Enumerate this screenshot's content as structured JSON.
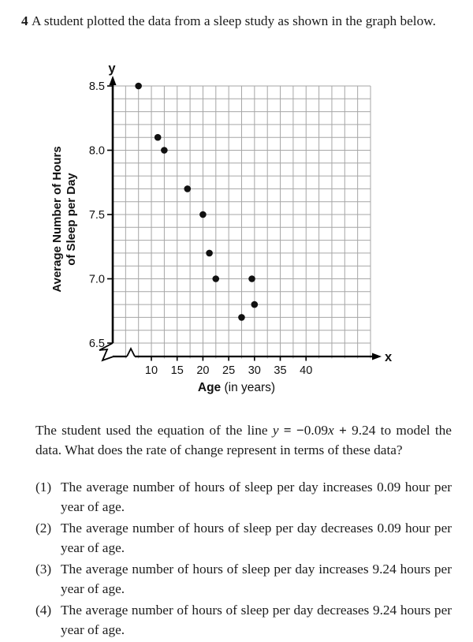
{
  "page": {
    "background": "#ffffff",
    "text_color": "#1c1c1c"
  },
  "question": {
    "number": "4",
    "stem": "A student plotted the data from a sleep study as shown in the graph below."
  },
  "chart_data": {
    "type": "scatter",
    "title": "",
    "x_axis": {
      "label_bold": "Age",
      "label_rest": " (in years)",
      "arrow_label": "x",
      "ticks": [
        10,
        15,
        20,
        25,
        30,
        35,
        40
      ],
      "grid_step_years": 2.5,
      "has_axis_break": true
    },
    "y_axis": {
      "label_line1": "Average Number of Hours",
      "label_line2": "of Sleep per Day",
      "arrow_label": "y",
      "ticks": [
        "8.5",
        "8.0",
        "7.5",
        "7.0",
        "6.5"
      ],
      "grid_step_hours": 0.1
    },
    "points": [
      [
        7.5,
        8.5
      ],
      [
        11.25,
        8.1
      ],
      [
        12.5,
        8.0
      ],
      [
        17,
        7.7
      ],
      [
        20,
        7.5
      ],
      [
        21.25,
        7.2
      ],
      [
        22.5,
        7.0
      ],
      [
        27.5,
        6.7
      ],
      [
        29.5,
        7.0
      ],
      [
        30,
        6.8
      ]
    ],
    "grid_color": "#a6a6a6",
    "axis_color": "#000000",
    "point_color": "#111111"
  },
  "paragraph": {
    "before": "The student used the equation of the line ",
    "equation": {
      "y": "y",
      "equals": " = ",
      "minus": "−",
      "coef": "0.09",
      "x": "x",
      "plus": " + ",
      "intercept": "9.24"
    },
    "after": " to model the data. What does the rate of change represent in terms of these data?"
  },
  "options": [
    {
      "label": "(1)",
      "text": "The average number of hours of sleep per day increases 0.09 hour per year of age."
    },
    {
      "label": "(2)",
      "text": "The average number of hours of sleep per day decreases 0.09 hour per year of age."
    },
    {
      "label": "(3)",
      "text": "The average number of hours of sleep per day increases 9.24 hours per year of age."
    },
    {
      "label": "(4)",
      "text": "The average number of hours of sleep per day decreases 9.24 hours per year of age."
    }
  ]
}
